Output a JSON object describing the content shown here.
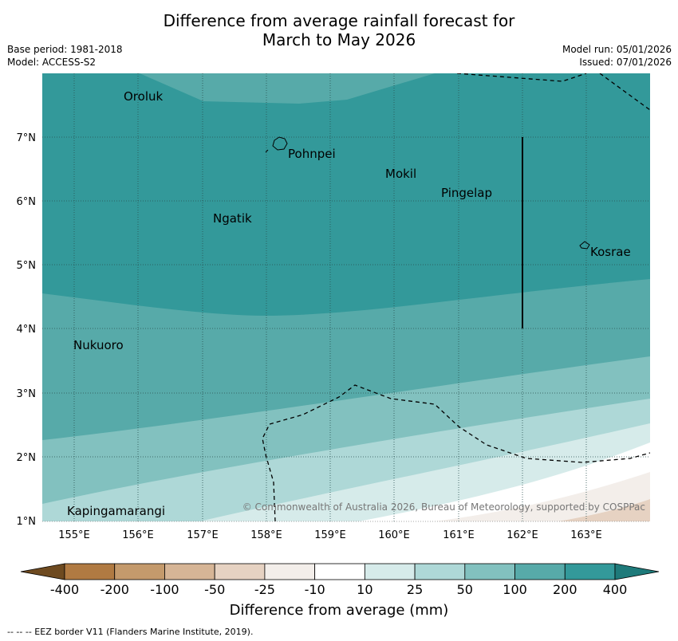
{
  "title": {
    "line1": "Difference from average rainfall forecast for",
    "line2": "March to May 2026"
  },
  "meta_left": {
    "base_period": "Base period: 1981-2018",
    "model": "Model: ACCESS-S2"
  },
  "meta_right": {
    "model_run": "Model run: 05/01/2026",
    "issued": "Issued: 07/01/2026"
  },
  "axes": {
    "lon_ticks": [
      "155°E",
      "156°E",
      "157°E",
      "158°E",
      "159°E",
      "160°E",
      "161°E",
      "162°E",
      "163°E"
    ],
    "lat_ticks": [
      "7°N",
      "6°N",
      "5°N",
      "4°N",
      "3°N",
      "2°N",
      "1°N"
    ]
  },
  "places": [
    {
      "name": "Oroluk"
    },
    {
      "name": "Pohnpei"
    },
    {
      "name": "Mokil"
    },
    {
      "name": "Pingelap"
    },
    {
      "name": "Ngatik"
    },
    {
      "name": "Kosrae"
    },
    {
      "name": "Nukuoro"
    },
    {
      "name": "Kapingamarangi"
    }
  ],
  "copyright": "© Commonwealth of Australia 2026, Bureau of Meteorology, supported by COSPPac",
  "colorbar": {
    "title": "Difference from average (mm)",
    "tick_labels": [
      "-400",
      "-200",
      "-100",
      "-50",
      "-25",
      "-10",
      "10",
      "25",
      "50",
      "100",
      "200",
      "400"
    ],
    "colors": [
      "#6e4a20",
      "#b07a42",
      "#c49a6c",
      "#d6b596",
      "#e6d2c2",
      "#f3eeea",
      "#ffffff",
      "#d6ebea",
      "#aed8d7",
      "#82c1bf",
      "#57aaa9",
      "#33999a",
      "#1e7a7a"
    ]
  },
  "footnote": "--  --  -- EEZ border V11 (Flanders Marine Institute, 2019)."
}
